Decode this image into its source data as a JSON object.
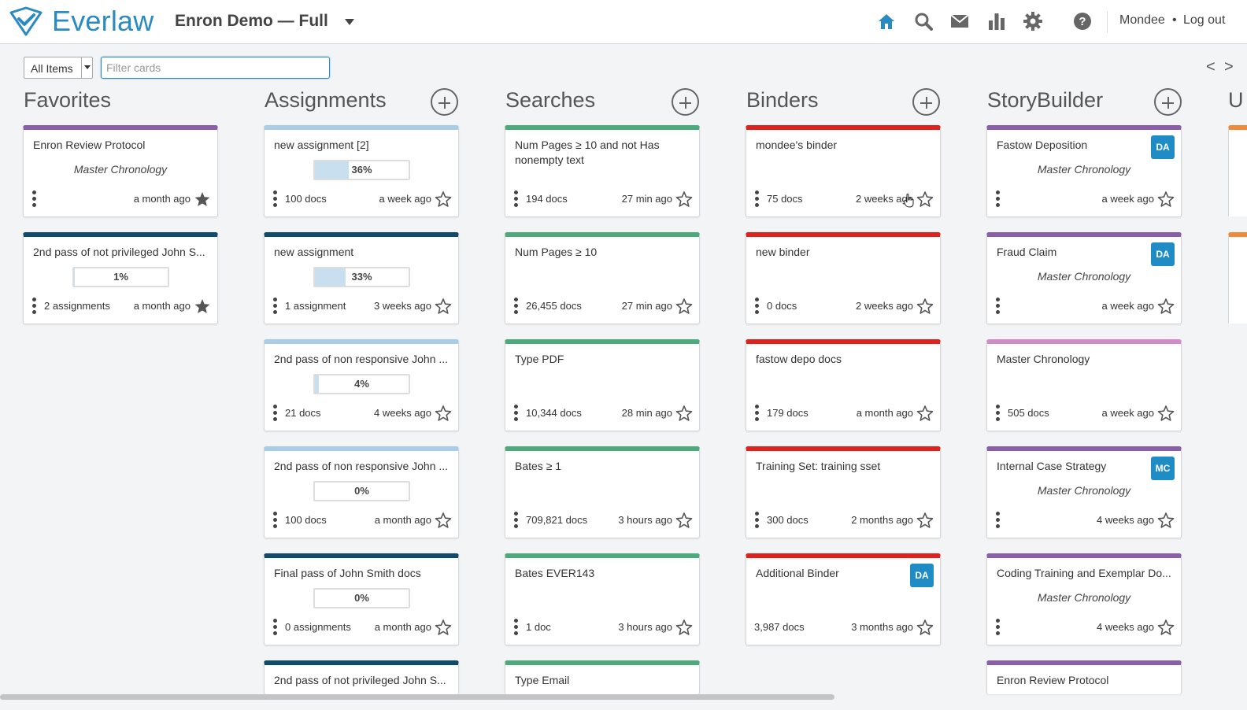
{
  "header": {
    "brand": "Everlaw",
    "project": "Enron Demo — Full",
    "user": "Mondee",
    "separator": "•",
    "logout": "Log out",
    "nav_icons": [
      "home-icon",
      "search-icon",
      "mail-icon",
      "bar-chart-icon",
      "gear-icon",
      "help-icon"
    ],
    "accent": "#2a8ac2"
  },
  "toolbar": {
    "scope_value": "All Items",
    "filter_placeholder": "Filter cards",
    "prev_label": "<",
    "next_label": ">"
  },
  "colors": {
    "purple": "#8a5ea8",
    "navy": "#104a6c",
    "lightblue": "#a9cde6",
    "green": "#4daa7d",
    "red": "#e0221c",
    "pink": "#d08cc8",
    "orange": "#f08a38",
    "badge": "#1f8cc5"
  },
  "columns": [
    {
      "title": "Favorites",
      "cards": [
        {
          "name": "Enron Review Protocol",
          "sub": "Master Chronology",
          "count": "",
          "time": "a month ago",
          "starred": true,
          "color": "#8a5ea8"
        },
        {
          "name": "2nd pass of not privileged John S...",
          "progress": 1,
          "progress_label": "1%",
          "count": "2 assignments",
          "time": "a month ago",
          "starred": true,
          "color": "#104a6c"
        }
      ]
    },
    {
      "title": "Assignments",
      "cards": [
        {
          "name": "new assignment [2]",
          "progress": 36,
          "progress_label": "36%",
          "count": "100 docs",
          "time": "a week ago",
          "color": "#a9cde6"
        },
        {
          "name": "new assignment",
          "progress": 33,
          "progress_label": "33%",
          "count": "1 assignment",
          "time": "3 weeks ago",
          "color": "#104a6c"
        },
        {
          "name": "2nd pass of non responsive John ...",
          "progress": 4,
          "progress_label": "4%",
          "count": "21 docs",
          "time": "4 weeks ago",
          "color": "#a9cde6"
        },
        {
          "name": "2nd pass of non responsive John ...",
          "progress": 0,
          "progress_label": "0%",
          "count": "100 docs",
          "time": "a month ago",
          "color": "#a9cde6"
        },
        {
          "name": "Final pass of John Smith docs",
          "progress": 0,
          "progress_label": "0%",
          "count": "0 assignments",
          "time": "a month ago",
          "color": "#104a6c"
        },
        {
          "name": "2nd pass of not privileged John S...",
          "color": "#104a6c"
        }
      ]
    },
    {
      "title": "Searches",
      "cards": [
        {
          "name": "Num Pages ≥ 10 and not Has nonempty text",
          "count": "194 docs",
          "time": "27 min ago",
          "color": "#4daa7d"
        },
        {
          "name": "Num Pages ≥ 10",
          "count": "26,455 docs",
          "time": "27 min ago",
          "color": "#4daa7d"
        },
        {
          "name": "Type PDF",
          "count": "10,344 docs",
          "time": "28 min ago",
          "color": "#4daa7d"
        },
        {
          "name": "Bates ≥ 1",
          "count": "709,821 docs",
          "time": "3 hours ago",
          "color": "#4daa7d"
        },
        {
          "name": "Bates EVER143",
          "count": "1 doc",
          "time": "3 hours ago",
          "color": "#4daa7d"
        },
        {
          "name": "Type Email",
          "color": "#4daa7d"
        }
      ]
    },
    {
      "title": "Binders",
      "cards": [
        {
          "name": "mondee's binder",
          "count": "75 docs",
          "time": "2 weeks ago",
          "color": "#e0221c"
        },
        {
          "name": "new binder",
          "count": "0 docs",
          "time": "2 weeks ago",
          "color": "#e0221c"
        },
        {
          "name": "fastow depo docs",
          "count": "179 docs",
          "time": "a month ago",
          "color": "#e0221c"
        },
        {
          "name": "Training Set: training sset",
          "count": "300 docs",
          "time": "2 months ago",
          "color": "#e0221c"
        },
        {
          "name": "Additional Binder",
          "badge": "DA",
          "count": "3,987 docs",
          "time": "3 months ago",
          "nokebab": true,
          "color": "#e0221c"
        }
      ]
    },
    {
      "title": "StoryBuilder",
      "cards": [
        {
          "name": "Fastow Deposition",
          "badge": "DA",
          "sub": "Master Chronology",
          "count": "",
          "time": "a week ago",
          "color": "#8a5ea8"
        },
        {
          "name": "Fraud Claim",
          "badge": "DA",
          "sub": "Master Chronology",
          "count": "",
          "time": "a week ago",
          "color": "#8a5ea8"
        },
        {
          "name": "Master Chronology",
          "count": "505 docs",
          "time": "a week ago",
          "color": "#d08cc8"
        },
        {
          "name": "Internal Case Strategy",
          "badge": "MC",
          "sub": "Master Chronology",
          "count": "",
          "time": "4 weeks ago",
          "color": "#8a5ea8"
        },
        {
          "name": "Coding Training and Exemplar Do...",
          "sub": "Master Chronology",
          "count": "",
          "time": "4 weeks ago",
          "color": "#8a5ea8"
        },
        {
          "name": "Enron Review Protocol",
          "color": "#8a5ea8"
        }
      ]
    }
  ]
}
